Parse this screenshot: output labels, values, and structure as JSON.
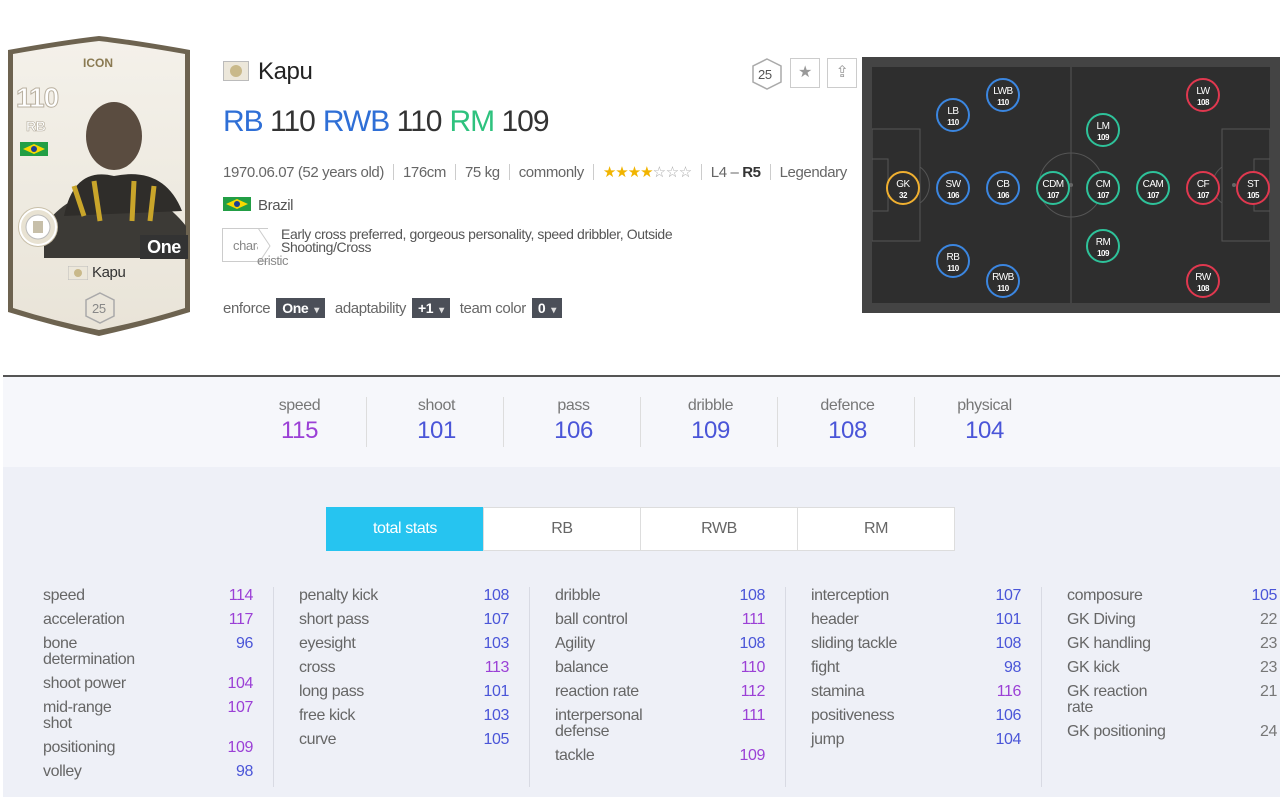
{
  "card": {
    "label": "ICON",
    "ovr": "110",
    "position": "RB",
    "enhance": "One",
    "name": "Kapu",
    "grade": "25"
  },
  "header": {
    "name": "Kapu",
    "season_grade": "25",
    "positions": [
      {
        "pos": "RB",
        "val": "110",
        "color": "#2f6fd6"
      },
      {
        "pos": "RWB",
        "val": "110",
        "color": "#2f6fd6"
      },
      {
        "pos": "RM",
        "val": "109",
        "color": "#2ec27e"
      }
    ],
    "birth": "1970.06.07 (52 years old)",
    "height": "176cm",
    "weight": "75 kg",
    "foot": "commonly",
    "stars_on": "★★★★",
    "stars_half": "☆☆☆",
    "league_prefix": "L4 –",
    "league_rank": "R5",
    "tier": "Legendary",
    "nation": "Brazil",
    "trait_label": "chara",
    "trait_label2": "eristic",
    "traits": "Early cross preferred, gorgeous personality, speed dribbler, Outside Shooting/Cross",
    "controls": {
      "enforce_label": "enforce",
      "enforce_value": "One",
      "adapt_label": "adaptability",
      "adapt_value": "+1",
      "team_color_label": "team color",
      "team_color_value": "0"
    },
    "star_icon": "star-icon",
    "upload_icon": "upload-icon"
  },
  "pitch": [
    {
      "pos": "GK",
      "val": "32",
      "color": "yellow"
    },
    {
      "pos": "SW",
      "val": "106",
      "color": "blue"
    },
    {
      "pos": "LB",
      "val": "110",
      "color": "blue"
    },
    {
      "pos": "RB",
      "val": "110",
      "color": "blue"
    },
    {
      "pos": "LWB",
      "val": "110",
      "color": "blue"
    },
    {
      "pos": "CB",
      "val": "106",
      "color": "blue"
    },
    {
      "pos": "RWB",
      "val": "110",
      "color": "blue"
    },
    {
      "pos": "CDM",
      "val": "107",
      "color": "green"
    },
    {
      "pos": "LM",
      "val": "109",
      "color": "green"
    },
    {
      "pos": "CM",
      "val": "107",
      "color": "green"
    },
    {
      "pos": "RM",
      "val": "109",
      "color": "green"
    },
    {
      "pos": "CAM",
      "val": "107",
      "color": "green"
    },
    {
      "pos": "LW",
      "val": "108",
      "color": "red"
    },
    {
      "pos": "CF",
      "val": "107",
      "color": "red"
    },
    {
      "pos": "RW",
      "val": "108",
      "color": "red"
    },
    {
      "pos": "ST",
      "val": "105",
      "color": "red"
    }
  ],
  "summary": [
    {
      "label": "speed",
      "value": "115",
      "color": "#9b40d6"
    },
    {
      "label": "shoot",
      "value": "101",
      "color": "#4a55d8"
    },
    {
      "label": "pass",
      "value": "106",
      "color": "#4a55d8"
    },
    {
      "label": "dribble",
      "value": "109",
      "color": "#4a55d8"
    },
    {
      "label": "defence",
      "value": "108",
      "color": "#4a55d8"
    },
    {
      "label": "physical",
      "value": "104",
      "color": "#4a55d8"
    }
  ],
  "tabs": [
    "total stats",
    "RB",
    "RWB",
    "RM"
  ],
  "stats": [
    [
      {
        "label": "speed",
        "value": "114",
        "c": "purple"
      },
      {
        "label": "acceleration",
        "value": "117",
        "c": "purple"
      },
      {
        "label": "bone determination",
        "value": "96",
        "c": "blue",
        "tall": true
      },
      {
        "label": "shoot power",
        "value": "104",
        "c": "purple"
      },
      {
        "label": "mid-range shot",
        "value": "107",
        "c": "purple",
        "tall": true
      },
      {
        "label": "positioning",
        "value": "109",
        "c": "purple"
      },
      {
        "label": "volley",
        "value": "98",
        "c": "blue"
      }
    ],
    [
      {
        "label": "penalty kick",
        "value": "108",
        "c": "blue"
      },
      {
        "label": "short pass",
        "value": "107",
        "c": "blue"
      },
      {
        "label": "eyesight",
        "value": "103",
        "c": "blue"
      },
      {
        "label": "cross",
        "value": "113",
        "c": "purple"
      },
      {
        "label": "long pass",
        "value": "101",
        "c": "blue"
      },
      {
        "label": "free kick",
        "value": "103",
        "c": "blue"
      },
      {
        "label": "curve",
        "value": "105",
        "c": "blue"
      }
    ],
    [
      {
        "label": "dribble",
        "value": "108",
        "c": "blue"
      },
      {
        "label": "ball control",
        "value": "111",
        "c": "purple"
      },
      {
        "label": "Agility",
        "value": "108",
        "c": "blue"
      },
      {
        "label": "balance",
        "value": "110",
        "c": "purple"
      },
      {
        "label": "reaction rate",
        "value": "112",
        "c": "purple"
      },
      {
        "label": "interpersonal defense",
        "value": "111",
        "c": "purple",
        "tall": true
      },
      {
        "label": "tackle",
        "value": "109",
        "c": "purple"
      }
    ],
    [
      {
        "label": "interception",
        "value": "107",
        "c": "blue"
      },
      {
        "label": "header",
        "value": "101",
        "c": "blue"
      },
      {
        "label": "sliding tackle",
        "value": "108",
        "c": "blue"
      },
      {
        "label": "fight",
        "value": "98",
        "c": "blue"
      },
      {
        "label": "stamina",
        "value": "116",
        "c": "purple"
      },
      {
        "label": "positiveness",
        "value": "106",
        "c": "blue"
      },
      {
        "label": "jump",
        "value": "104",
        "c": "blue"
      }
    ],
    [
      {
        "label": "composure",
        "value": "105",
        "c": "blue"
      },
      {
        "label": "GK Diving",
        "value": "22",
        "c": "gray"
      },
      {
        "label": "GK handling",
        "value": "23",
        "c": "gray"
      },
      {
        "label": "GK kick",
        "value": "23",
        "c": "gray"
      },
      {
        "label": "GK reaction rate",
        "value": "21",
        "c": "gray",
        "tall": true
      },
      {
        "label": "GK positioning",
        "value": "24",
        "c": "gray",
        "tall": true
      }
    ]
  ]
}
